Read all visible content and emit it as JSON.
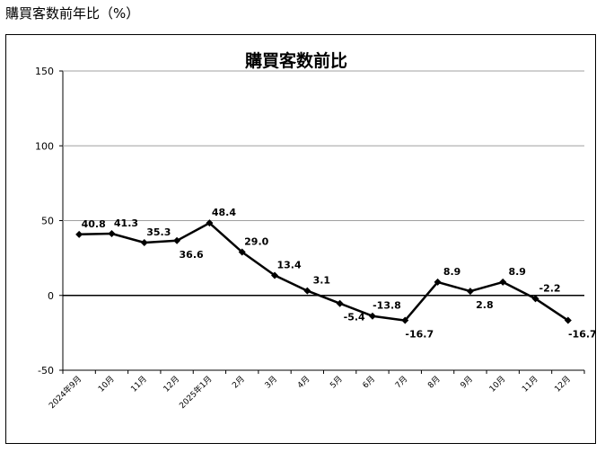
{
  "page": {
    "caption": "購買客数前年比（%）"
  },
  "chart_data": {
    "type": "line",
    "title": "購買客数前比",
    "xlabel": "",
    "ylabel": "",
    "ylim": [
      -50,
      150
    ],
    "yticks": [
      150,
      100,
      50,
      0,
      -50
    ],
    "grid": true,
    "legend": "none",
    "categories": [
      "2024年9月",
      "10月",
      "11月",
      "12月",
      "2025年1月",
      "2月",
      "3月",
      "4月",
      "5月",
      "6月",
      "7月",
      "8月",
      "9月",
      "10月",
      "11月",
      "12月"
    ],
    "series": [
      {
        "values": [
          40.8,
          41.3,
          35.3,
          36.6,
          48.4,
          29.0,
          13.4,
          3.1,
          -5.4,
          -13.8,
          -16.7,
          8.9,
          2.8,
          8.9,
          -2.2,
          -16.7
        ]
      }
    ],
    "data_labels": [
      "40.8",
      "41.3",
      "35.3",
      "36.6",
      "48.4",
      "29.0",
      "13.4",
      "3.1",
      "-5.4",
      "-13.8",
      "-16.7",
      "8.9",
      "2.8",
      "8.9",
      "-2.2",
      "-16.7"
    ],
    "colors": {
      "line": "#000000",
      "grid": "#a0a0a0"
    }
  }
}
